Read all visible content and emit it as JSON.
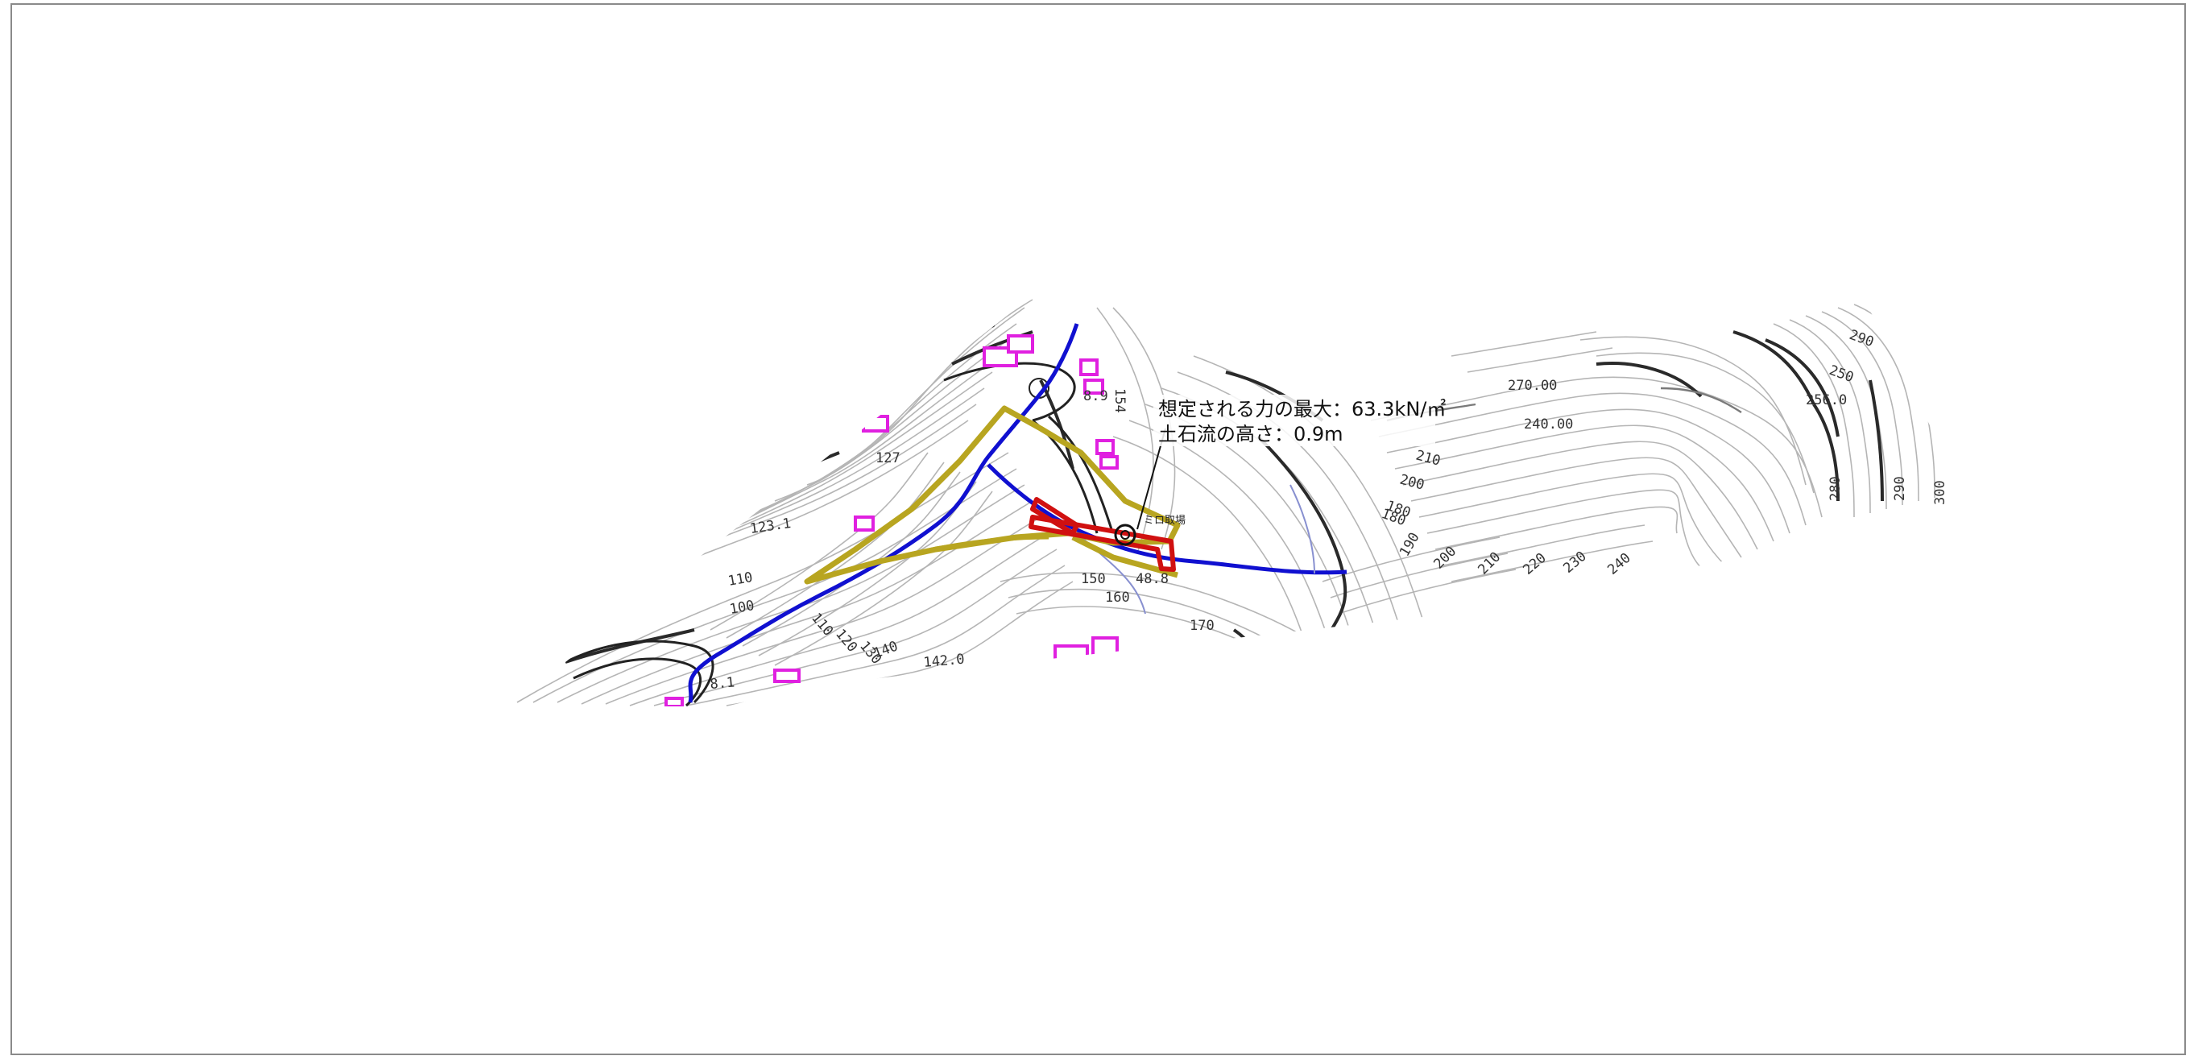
{
  "annotation": {
    "max_force": "想定される力の最大：63.3kN/㎡",
    "flow_height": "土石流の高さ：0.9m"
  },
  "small_label": "ミロ取場",
  "elevation_labels": [
    "150",
    "123.1",
    "110",
    "100",
    "110",
    "120",
    "130",
    "140",
    "142.0",
    "8.1",
    "150",
    "160",
    "170",
    "180",
    "190",
    "200",
    "210",
    "220",
    "230",
    "240",
    "240.00",
    "270.00",
    "210",
    "200",
    "180",
    "290",
    "250",
    "256.0",
    "280",
    "290",
    "300",
    "8.9",
    "154",
    "127",
    "48.8"
  ],
  "colors": {
    "hazard_zone": "#b8a520",
    "stream": "#1010d0",
    "structure": "#d01010",
    "building": "#e020e0",
    "contour_index": "#2a2a2a",
    "contour_minor": "#b5b5b5"
  },
  "legend_icons": [
    "hazard-zone-outline",
    "stream-line",
    "check-dam-structure",
    "building-outline"
  ]
}
